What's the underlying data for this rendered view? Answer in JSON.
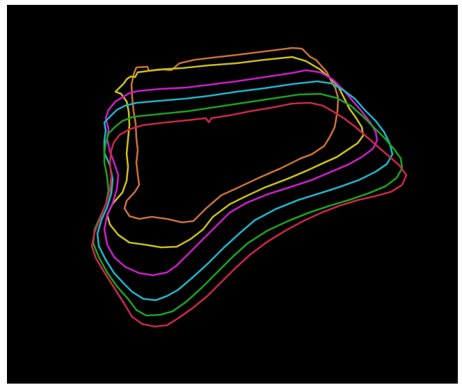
{
  "image": {
    "background": "#000000",
    "contours": [
      {
        "name": "orange",
        "color": "#C8703A"
      },
      {
        "name": "yellow",
        "color": "#C8BE1E"
      },
      {
        "name": "magenta",
        "color": "#C81EC8"
      },
      {
        "name": "cyan",
        "color": "#1EB4C8"
      },
      {
        "name": "green",
        "color": "#1EA01E"
      },
      {
        "name": "red",
        "color": "#C8284B"
      }
    ]
  }
}
